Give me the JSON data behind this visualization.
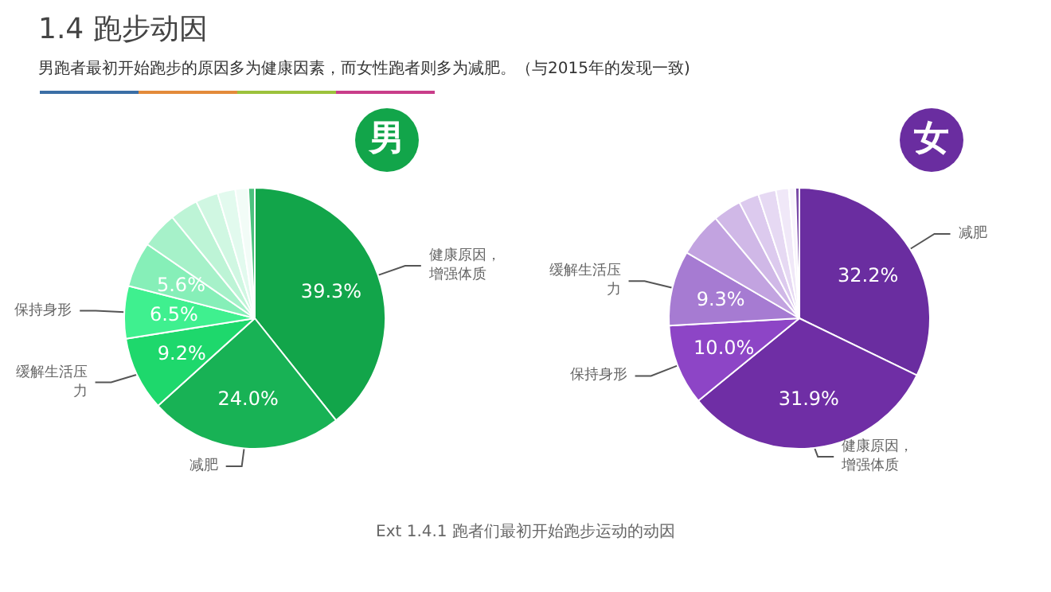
{
  "chart_data": [
    {
      "type": "pie",
      "title": "1.4 跑步动因",
      "subtitle": "男跑者最初开始跑步的原因多为健康因素，而女性跑者则多为减肥。（与2015年的发现一致)",
      "annotations": [
        "男"
      ],
      "categories": [
        "健康原因，增强体质",
        "减肥",
        "缓解生活压力",
        "保持身形",
        null,
        null,
        null,
        null,
        null,
        null,
        null
      ],
      "values": [
        39.3,
        24.0,
        9.2,
        6.5,
        5.6,
        4.5,
        3.5,
        2.8,
        2.2,
        1.6,
        0.8
      ],
      "value_labels": [
        "39.3%",
        "24.0%",
        "9.2%",
        "6.5%",
        "5.6%",
        null,
        null,
        null,
        null,
        null,
        null
      ],
      "colors": [
        "#12a54a",
        "#18b255",
        "#1ed86c",
        "#3ff08f",
        "#86efb8",
        "#a6f1c9",
        "#bdf4d6",
        "#d0f7e2",
        "#e2faee",
        "#f2fcf7",
        "#4cc27e"
      ]
    },
    {
      "type": "pie",
      "annotations": [
        "女",
        "Ext 1.4.1 跑者们最初开始跑步运动的动因"
      ],
      "categories": [
        "减肥",
        "健康原因，增强体质",
        "保持身形",
        "缓解生活压力",
        null,
        null,
        null,
        null,
        null,
        null,
        null
      ],
      "values": [
        32.2,
        31.9,
        10.0,
        9.3,
        5.5,
        3.5,
        2.5,
        2.2,
        1.6,
        0.8,
        0.5
      ],
      "value_labels": [
        "32.2%",
        "31.9%",
        "10.0%",
        "9.3%",
        null,
        null,
        null,
        null,
        null,
        null,
        null
      ],
      "colors": [
        "#6a2da0",
        "#6f2ea5",
        "#8d45c6",
        "#a67bd2",
        "#c2a3e0",
        "#d0b8e7",
        "#dccaee",
        "#e6d9f3",
        "#f0e8f8",
        "#f8f4fc",
        "#7a4aa8"
      ]
    }
  ]
}
